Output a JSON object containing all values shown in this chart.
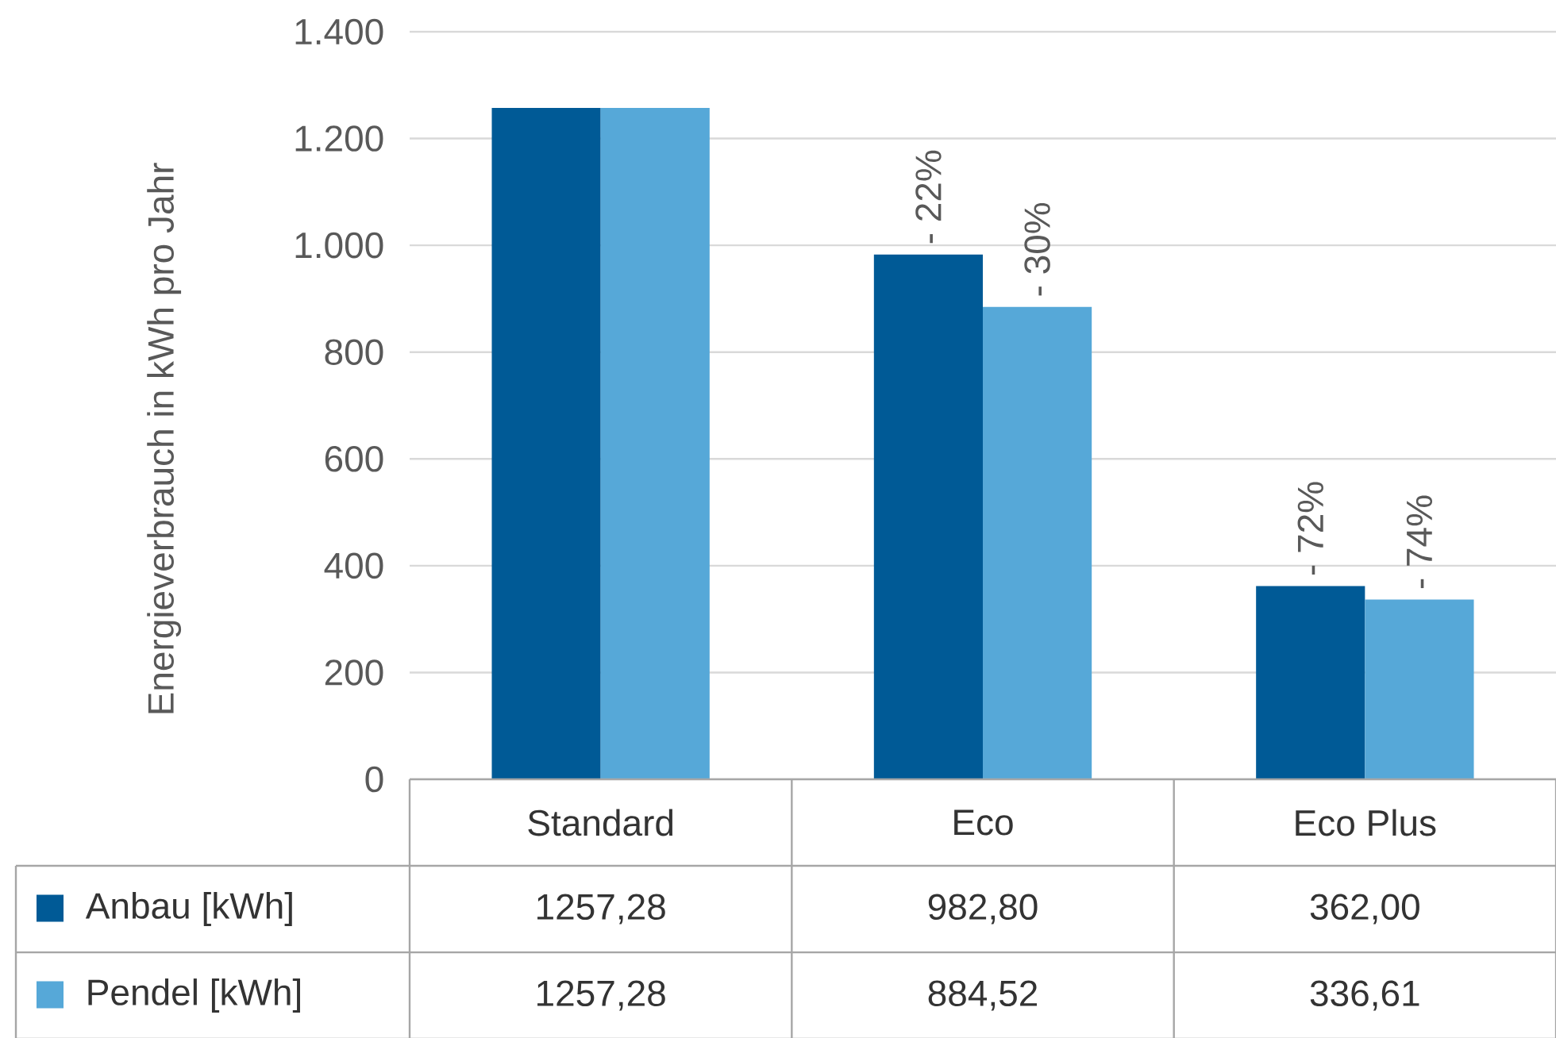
{
  "chart_data": {
    "type": "bar",
    "ylabel": "Energieverbrauch in kWh pro Jahr",
    "categories": [
      "Standard",
      "Eco",
      "Eco Plus"
    ],
    "series": [
      {
        "name": "Anbau [kWh]",
        "color": "#005a96",
        "values": [
          1257.28,
          982.8,
          362.0
        ],
        "value_labels": [
          "1257,28",
          "982,80",
          "362,00"
        ]
      },
      {
        "name": "Pendel [kWh]",
        "color": "#56a8d8",
        "values": [
          1257.28,
          884.52,
          336.61
        ],
        "value_labels": [
          "1257,28",
          "884,52",
          "336,61"
        ]
      }
    ],
    "ylim": [
      0,
      1400
    ],
    "yticks": [
      0,
      200,
      400,
      600,
      800,
      {
        "value": 1000,
        "label": "1.000"
      },
      {
        "value": 1200,
        "label": "1.200"
      },
      {
        "value": 1400,
        "label": "1.400"
      }
    ],
    "grid": "y",
    "legend": "bottom",
    "annotations": [
      {
        "text": "- 22%",
        "x": "Eco",
        "y": 982.8
      },
      {
        "text": "- 30%",
        "x": "Eco",
        "y": 884.52
      },
      {
        "text": "- 72%",
        "x": "Eco Plus",
        "y": 362.0
      },
      {
        "text": "- 74%",
        "x": "Eco Plus",
        "y": 336.61
      }
    ]
  }
}
